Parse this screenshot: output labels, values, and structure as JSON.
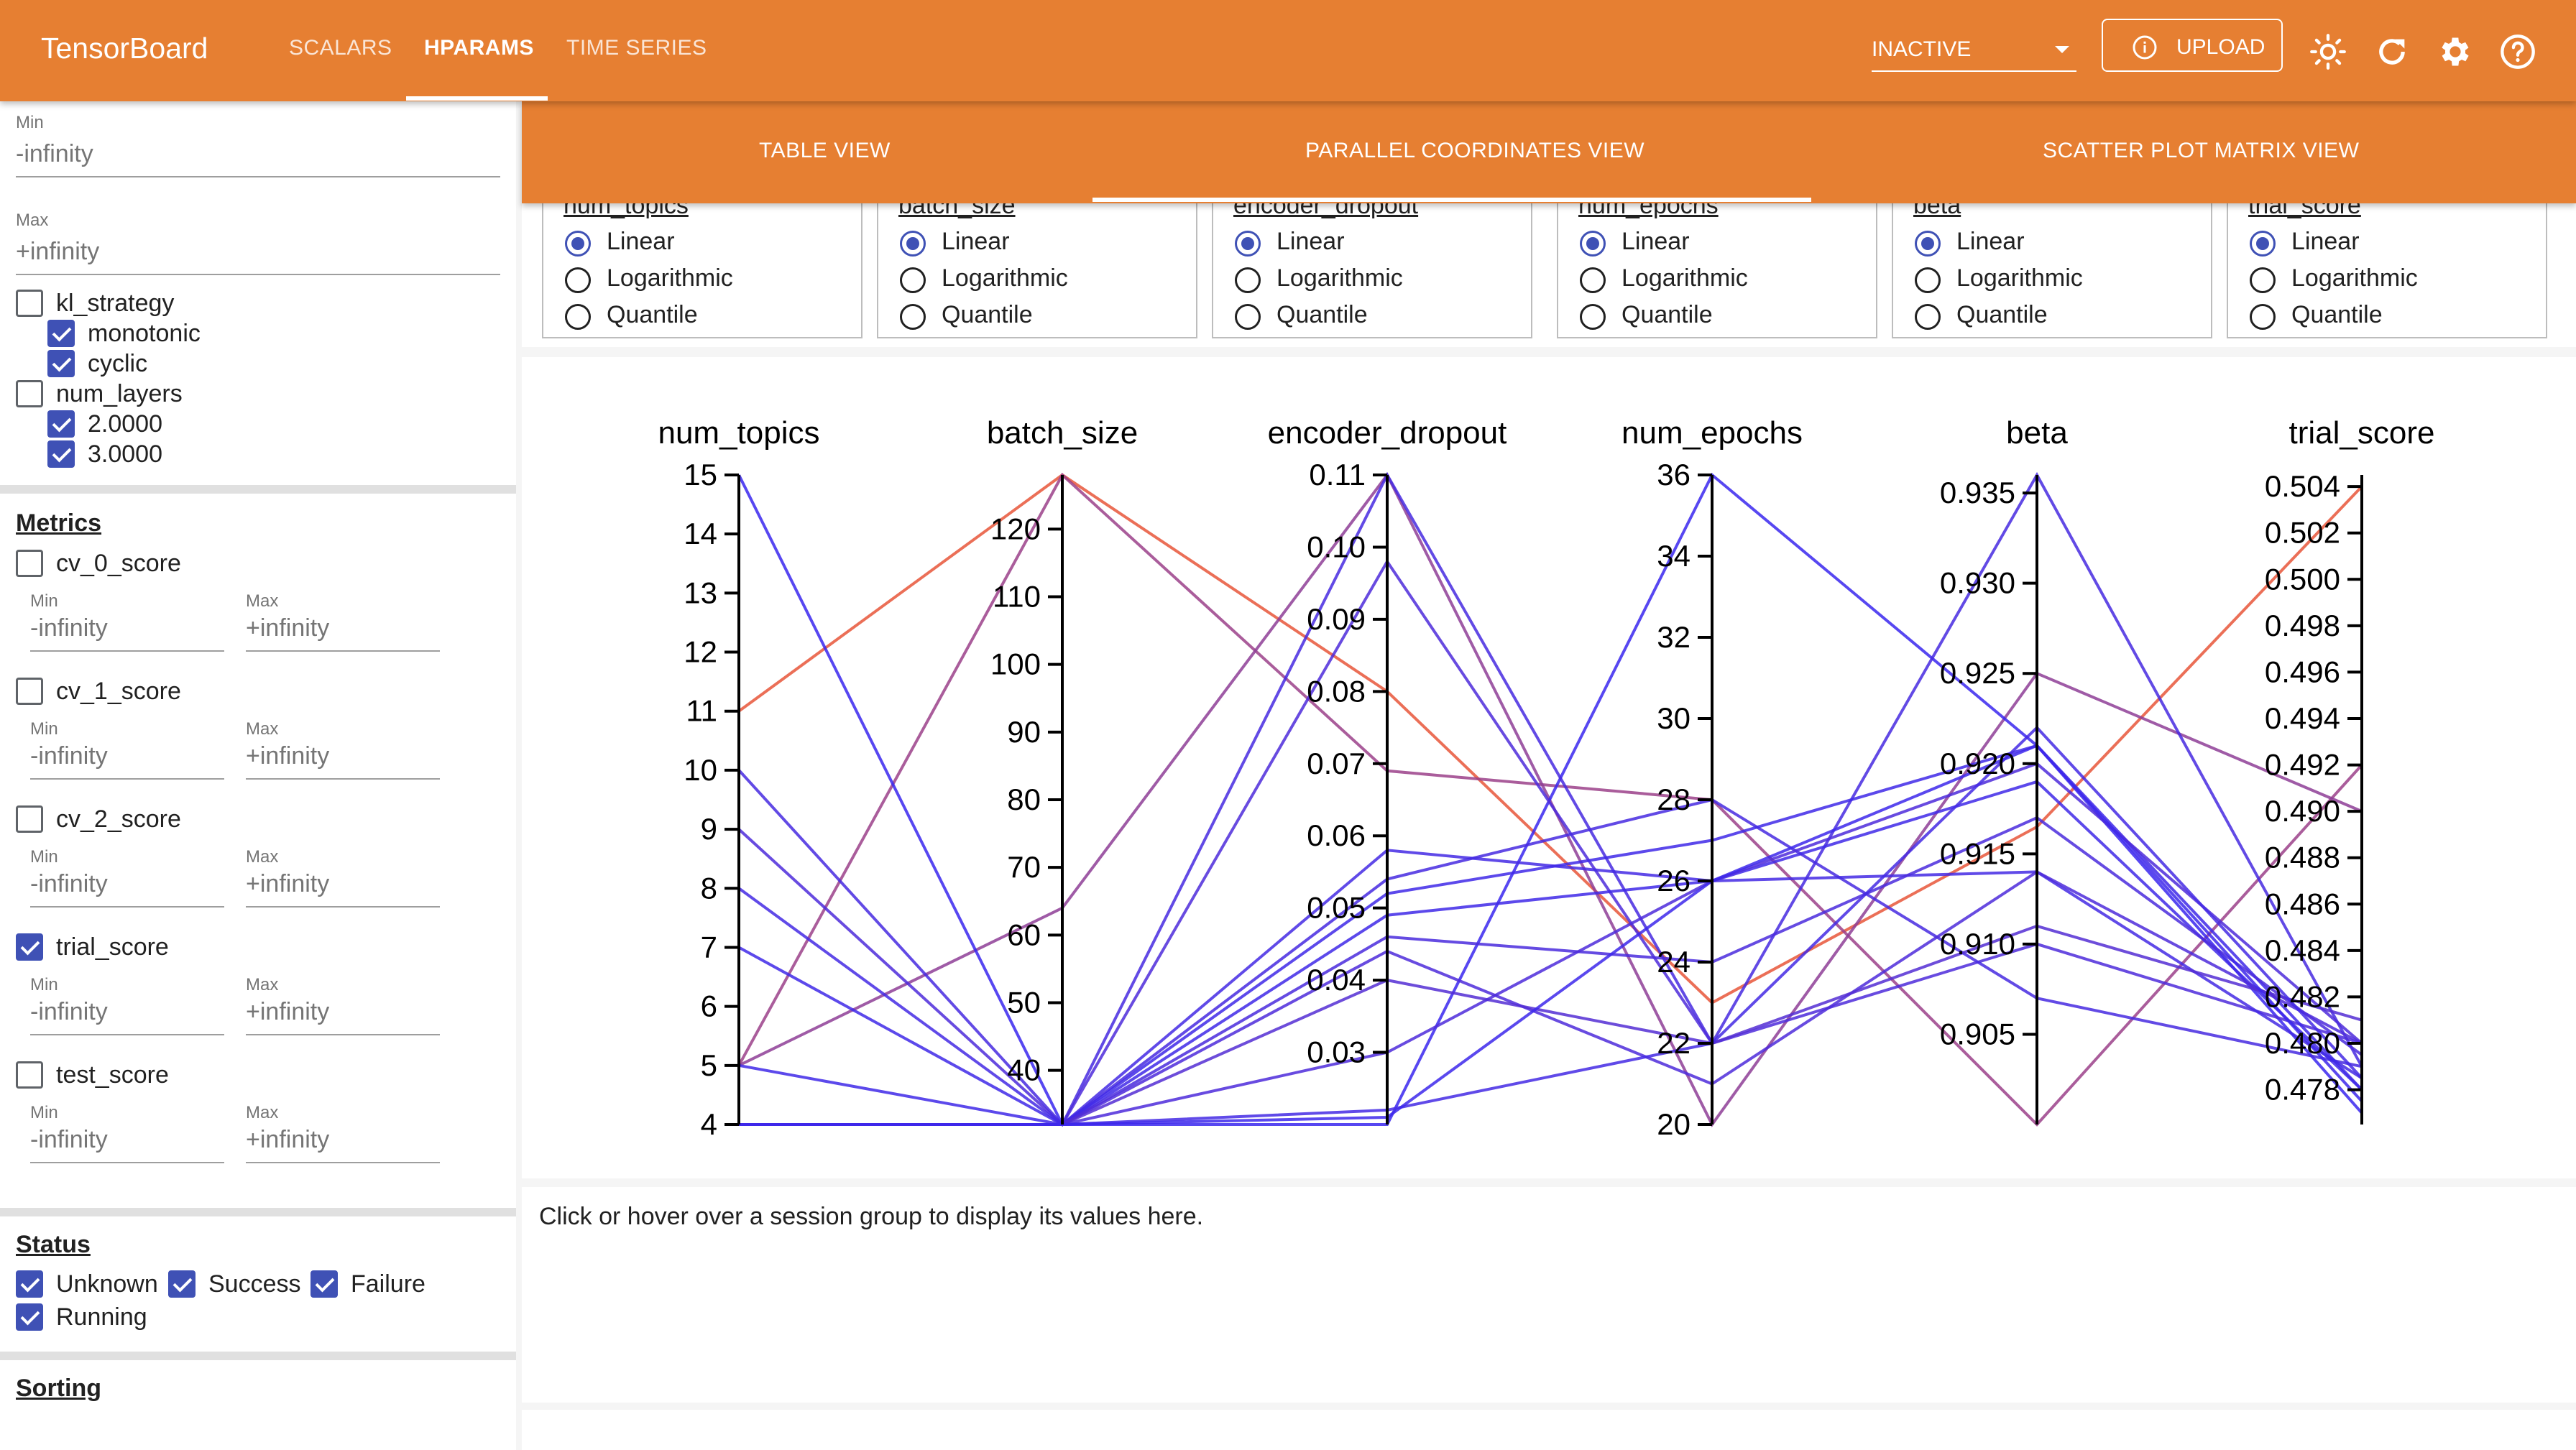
{
  "app": {
    "brand": "TensorBoard",
    "nav_tabs": [
      {
        "label": "SCALARS",
        "active": false
      },
      {
        "label": "HPARAMS",
        "active": true
      },
      {
        "label": "TIME SERIES",
        "active": false
      }
    ],
    "run_selector": "INACTIVE",
    "upload_label": "UPLOAD",
    "icons": [
      "upload-info-icon",
      "theme-brightness-icon",
      "reload-icon",
      "settings-gear-icon",
      "help-icon"
    ]
  },
  "sidebar": {
    "top_range": {
      "min_label": "Min",
      "min_value": "-infinity",
      "max_label": "Max",
      "max_value": "+infinity"
    },
    "hparams": [
      {
        "name": "kl_strategy",
        "checked": false,
        "values": [
          {
            "label": "monotonic",
            "checked": true
          },
          {
            "label": "cyclic",
            "checked": true
          }
        ]
      },
      {
        "name": "num_layers",
        "checked": false,
        "values": [
          {
            "label": "2.0000",
            "checked": true
          },
          {
            "label": "3.0000",
            "checked": true
          }
        ]
      }
    ],
    "metrics_title": "Metrics",
    "metrics": [
      {
        "name": "cv_0_score",
        "checked": false,
        "min_label": "Min",
        "min": "-infinity",
        "max_label": "Max",
        "max": "+infinity"
      },
      {
        "name": "cv_1_score",
        "checked": false,
        "min_label": "Min",
        "min": "-infinity",
        "max_label": "Max",
        "max": "+infinity"
      },
      {
        "name": "cv_2_score",
        "checked": false,
        "min_label": "Min",
        "min": "-infinity",
        "max_label": "Max",
        "max": "+infinity"
      },
      {
        "name": "trial_score",
        "checked": true,
        "min_label": "Min",
        "min": "-infinity",
        "max_label": "Max",
        "max": "+infinity"
      },
      {
        "name": "test_score",
        "checked": false,
        "min_label": "Min",
        "min": "-infinity",
        "max_label": "Max",
        "max": "+infinity"
      }
    ],
    "status_title": "Status",
    "status": [
      {
        "label": "Unknown",
        "checked": true
      },
      {
        "label": "Success",
        "checked": true
      },
      {
        "label": "Failure",
        "checked": true
      },
      {
        "label": "Running",
        "checked": true
      }
    ],
    "sorting_title": "Sorting"
  },
  "view_tabs": [
    {
      "label": "TABLE VIEW",
      "active": false
    },
    {
      "label": "PARALLEL COORDINATES VIEW",
      "active": true
    },
    {
      "label": "SCATTER PLOT MATRIX VIEW",
      "active": false
    }
  ],
  "scale_options": [
    "Linear",
    "Logarithmic",
    "Quantile"
  ],
  "scale_controls": [
    {
      "column": "num_topics",
      "selected": "Linear"
    },
    {
      "column": "batch_size",
      "selected": "Linear"
    },
    {
      "column": "encoder_dropout",
      "selected": "Linear"
    },
    {
      "column": "num_epochs",
      "selected": "Linear"
    },
    {
      "column": "beta",
      "selected": "Linear"
    },
    {
      "column": "trial_score",
      "selected": "Linear"
    }
  ],
  "chart_data": {
    "type": "parallel_coordinates",
    "axes": [
      {
        "name": "num_topics",
        "range": [
          4,
          15
        ],
        "ticks": [
          4,
          5,
          6,
          7,
          8,
          9,
          10,
          11,
          12,
          13,
          14,
          15
        ]
      },
      {
        "name": "batch_size",
        "range": [
          32,
          128
        ],
        "ticks": [
          40,
          50,
          60,
          70,
          80,
          90,
          100,
          110,
          120
        ]
      },
      {
        "name": "encoder_dropout",
        "range": [
          0.02,
          0.11
        ],
        "ticks": [
          "0.03",
          "0.04",
          "0.05",
          "0.06",
          "0.07",
          "0.08",
          "0.09",
          "0.10",
          "0.11"
        ]
      },
      {
        "name": "num_epochs",
        "range": [
          20,
          36
        ],
        "ticks": [
          20,
          22,
          24,
          26,
          28,
          30,
          32,
          34,
          36
        ]
      },
      {
        "name": "beta",
        "range": [
          0.9,
          0.936
        ],
        "ticks": [
          "0.905",
          "0.910",
          "0.915",
          "0.920",
          "0.925",
          "0.930",
          "0.935"
        ]
      },
      {
        "name": "trial_score",
        "range": [
          0.4765,
          0.5045
        ],
        "ticks": [
          "0.478",
          "0.480",
          "0.482",
          "0.484",
          "0.486",
          "0.488",
          "0.490",
          "0.492",
          "0.494",
          "0.496",
          "0.498",
          "0.500",
          "0.502",
          "0.504"
        ]
      }
    ],
    "color_low": "#3a27ee",
    "color_high": "#e8563a",
    "sessions": [
      [
        11,
        128,
        0.08,
        23,
        0.9165,
        0.504
      ],
      [
        5,
        128,
        0.069,
        28,
        0.9,
        0.492
      ],
      [
        5,
        64,
        0.11,
        20,
        0.925,
        0.49
      ],
      [
        15,
        32,
        0.02,
        36,
        0.921,
        0.477
      ],
      [
        4,
        32,
        0.11,
        22,
        0.936,
        0.479
      ],
      [
        9,
        32,
        0.098,
        22,
        0.91,
        0.48
      ],
      [
        10,
        32,
        0.054,
        28,
        0.907,
        0.479
      ],
      [
        8,
        32,
        0.058,
        26,
        0.914,
        0.4785
      ],
      [
        7,
        32,
        0.052,
        27,
        0.921,
        0.478
      ],
      [
        5,
        32,
        0.049,
        26,
        0.919,
        0.478
      ],
      [
        4,
        32,
        0.046,
        24,
        0.917,
        0.4795
      ],
      [
        4,
        32,
        0.044,
        21,
        0.914,
        0.48
      ],
      [
        4,
        32,
        0.04,
        22,
        0.911,
        0.481
      ],
      [
        4,
        32,
        0.03,
        26,
        0.92,
        0.48
      ],
      [
        4,
        32,
        0.022,
        22,
        0.922,
        0.4785
      ],
      [
        4,
        32,
        0.021,
        26,
        0.921,
        0.4775
      ]
    ]
  },
  "details_hint": "Click or hover over a session group to display its values here."
}
